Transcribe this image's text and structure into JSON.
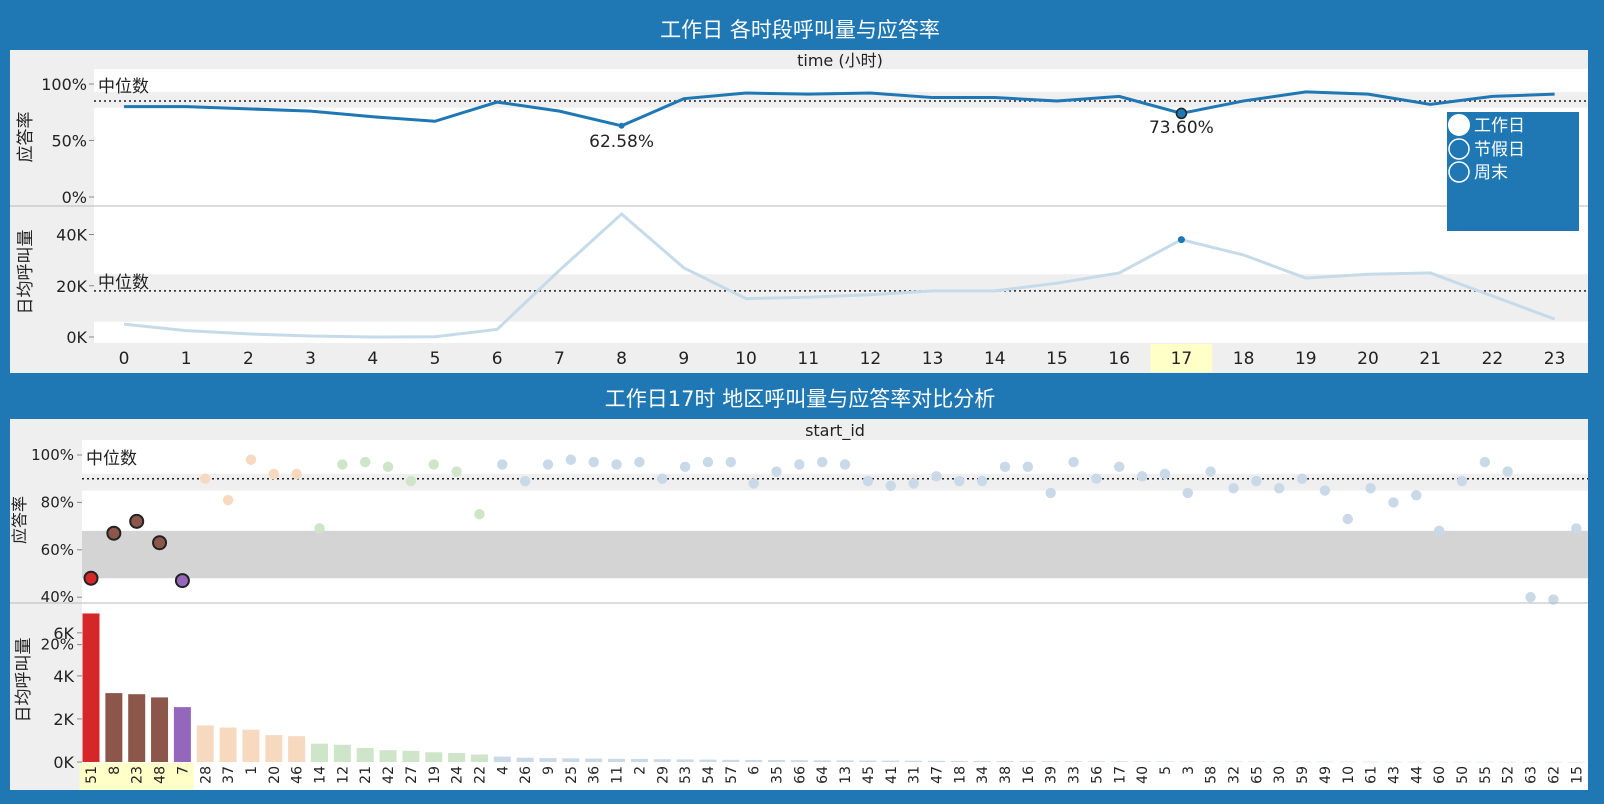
{
  "top": {
    "title": "工作日 各时段呼叫量与应答率",
    "header": "time (小时)",
    "median_label": "中位数",
    "ylabel_rate": "应答率",
    "ylabel_vol": "日均呼叫量",
    "rate_ticks": [
      "100%",
      "50%",
      "0%"
    ],
    "vol_ticks": [
      "40K",
      "20K",
      "0K"
    ],
    "hours": [
      "0",
      "1",
      "2",
      "3",
      "4",
      "5",
      "6",
      "7",
      "8",
      "9",
      "10",
      "11",
      "12",
      "13",
      "14",
      "15",
      "16",
      "17",
      "18",
      "19",
      "20",
      "21",
      "22",
      "23"
    ],
    "highlight_hour": "17",
    "legend": [
      "工作日",
      "节假日",
      "周末"
    ],
    "annotations": [
      "62.58%",
      "73.60%"
    ]
  },
  "bottom": {
    "title": "工作日17时 地区呼叫量与应答率对比分析",
    "header": "start_id",
    "median_label": "中位数",
    "ylabel_rate": "应答率",
    "ylabel_vol": "日均呼叫量",
    "rate_ticks": [
      "100%",
      "80%",
      "60%",
      "40%",
      "20%"
    ],
    "vol_ticks": [
      "6K",
      "4K",
      "2K",
      "0K"
    ]
  },
  "colors": {
    "background": "#1f77b4",
    "line": "#1f77b4",
    "faded_line": "#c6dbe9",
    "highlight": "#ffffc7",
    "red": "#d62728",
    "brown": "#8c564b",
    "purple": "#9467bd",
    "orange_faded": "#f7d9bf",
    "green_faded": "#cfe5c9",
    "blue_faded": "#c9d9e8"
  },
  "chart_data": [
    {
      "type": "line",
      "title": "工作日 各时段呼叫量与应答率",
      "x": [
        0,
        1,
        2,
        3,
        4,
        5,
        6,
        7,
        8,
        9,
        10,
        11,
        12,
        13,
        14,
        15,
        16,
        17,
        18,
        19,
        20,
        21,
        22,
        23
      ],
      "xlabel": "time (小时)",
      "series": [
        {
          "name": "应答率",
          "values": [
            80,
            80,
            78,
            76,
            71,
            67,
            84,
            76,
            63,
            87,
            92,
            91,
            92,
            88,
            88,
            85,
            89,
            74,
            85,
            93,
            91,
            82,
            89,
            91
          ]
        },
        {
          "name": "日均呼叫量",
          "values": [
            5000,
            2500,
            1200,
            400,
            0,
            100,
            3000,
            26000,
            48000,
            27000,
            15000,
            15500,
            16500,
            18000,
            18000,
            21000,
            25000,
            38000,
            32000,
            23000,
            24500,
            25000,
            16000,
            7000
          ]
        }
      ],
      "ylim_rate": [
        0,
        100
      ],
      "ylim_volume": [
        0,
        48000
      ],
      "median_rate": 85,
      "median_volume": 18000,
      "annotations": [
        {
          "x": 8,
          "text": "62.58%"
        },
        {
          "x": 17,
          "text": "73.60%"
        }
      ],
      "legend": [
        "工作日",
        "节假日",
        "周末"
      ]
    },
    {
      "type": "bar",
      "title": "工作日17时 地区呼叫量与应答率对比分析",
      "xlabel": "start_id",
      "categories": [
        "51",
        "8",
        "23",
        "48",
        "7",
        "28",
        "37",
        "1",
        "20",
        "46",
        "14",
        "12",
        "21",
        "42",
        "27",
        "19",
        "24",
        "22",
        "4",
        "26",
        "9",
        "25",
        "36",
        "11",
        "2",
        "29",
        "53",
        "54",
        "57",
        "6",
        "35",
        "66",
        "64",
        "13",
        "45",
        "41",
        "31",
        "47",
        "18",
        "34",
        "38",
        "16",
        "39",
        "33",
        "56",
        "17",
        "40",
        "5",
        "3",
        "58",
        "32",
        "65",
        "30",
        "59",
        "49",
        "10",
        "61",
        "43",
        "44",
        "60",
        "50",
        "55",
        "52",
        "63",
        "62",
        "15"
      ],
      "groups": [
        "red",
        "brown",
        "brown",
        "brown",
        "purple",
        "orange",
        "orange",
        "orange",
        "orange",
        "orange",
        "green",
        "green",
        "green",
        "green",
        "green",
        "green",
        "green",
        "green",
        "blue",
        "blue",
        "blue",
        "blue",
        "blue",
        "blue",
        "blue",
        "blue",
        "blue",
        "blue",
        "blue",
        "blue",
        "blue",
        "blue",
        "blue",
        "blue",
        "blue",
        "blue",
        "blue",
        "blue",
        "blue",
        "blue",
        "blue",
        "blue",
        "blue",
        "blue",
        "blue",
        "blue",
        "blue",
        "blue",
        "blue",
        "blue",
        "blue",
        "blue",
        "blue",
        "blue",
        "blue",
        "blue",
        "blue",
        "blue",
        "blue",
        "blue",
        "blue",
        "blue",
        "blue",
        "blue",
        "blue",
        "blue"
      ],
      "series": [
        {
          "name": "应答率",
          "values": [
            48,
            67,
            72,
            63,
            47,
            90,
            81,
            98,
            92,
            92,
            69,
            96,
            97,
            95,
            89,
            96,
            93,
            75,
            96,
            89,
            96,
            98,
            97,
            96,
            97,
            90,
            95,
            97,
            97,
            88,
            93,
            96,
            97,
            96,
            89,
            87,
            88,
            91,
            89,
            89,
            95,
            95,
            84,
            97,
            90,
            95,
            91,
            92,
            84,
            93,
            86,
            89,
            86,
            90,
            85,
            73,
            86,
            80,
            83,
            68,
            89,
            97,
            93,
            40,
            39,
            69
          ]
        },
        {
          "name": "日均呼叫量",
          "values": [
            6900,
            3200,
            3150,
            3000,
            2550,
            1700,
            1600,
            1500,
            1250,
            1200,
            850,
            800,
            650,
            550,
            520,
            450,
            420,
            350,
            250,
            200,
            180,
            170,
            160,
            150,
            140,
            130,
            120,
            110,
            100,
            95,
            90,
            85,
            80,
            75,
            70,
            65,
            60,
            55,
            50,
            45,
            40,
            38,
            36,
            34,
            32,
            30,
            28,
            26,
            24,
            22,
            20,
            19,
            18,
            17,
            16,
            15,
            14,
            13,
            12,
            11,
            10,
            9,
            8,
            7,
            6,
            5
          ]
        }
      ],
      "ylim_rate": [
        0,
        100
      ],
      "ylim_volume": [
        0,
        7200
      ],
      "median_rate": 90,
      "highlighted": [
        "51",
        "8",
        "23",
        "48",
        "7"
      ]
    }
  ]
}
